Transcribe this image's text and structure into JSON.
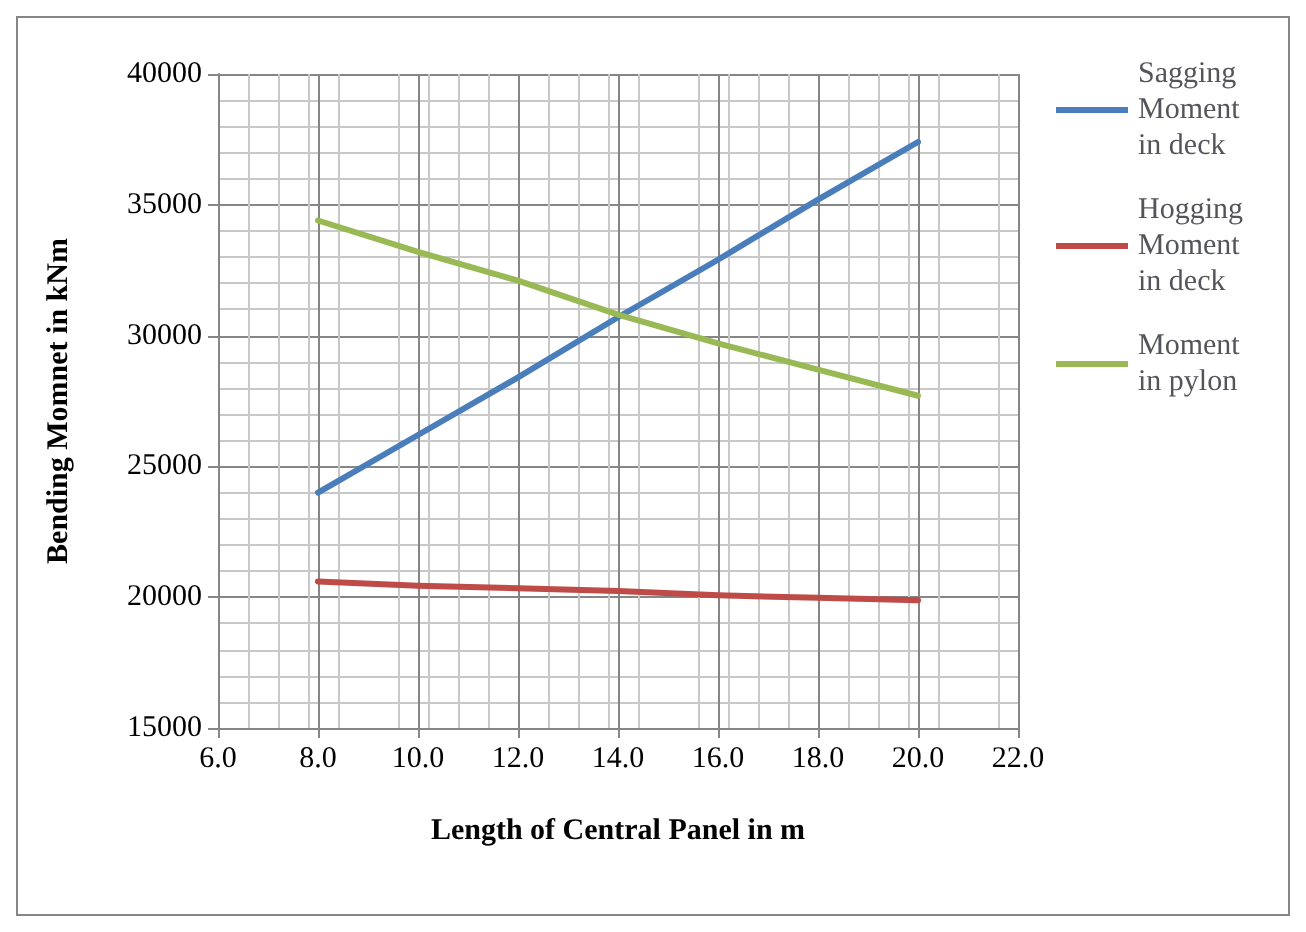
{
  "chart_data": {
    "type": "line",
    "xlabel": "Length of Central Panel in m",
    "ylabel": "Bending Momnet in kNm",
    "x": [
      8,
      10,
      12,
      14,
      16,
      18,
      20
    ],
    "series": [
      {
        "name": "Sagging Moment in deck",
        "color": "#4a7ebb",
        "values": [
          24000,
          26200,
          28400,
          30700,
          32900,
          35200,
          37400
        ]
      },
      {
        "name": "Hogging Moment in deck",
        "color": "#be4b48",
        "values": [
          20600,
          20440,
          20340,
          20240,
          20070,
          19980,
          19880
        ]
      },
      {
        "name": "Moment in pylon",
        "color": "#98b954",
        "values": [
          34400,
          33200,
          32100,
          30800,
          29700,
          28700,
          27700
        ]
      }
    ],
    "xlim": [
      6,
      22
    ],
    "xticks": [
      {
        "value": 6,
        "label": "6.0"
      },
      {
        "value": 8,
        "label": "8.0"
      },
      {
        "value": 10,
        "label": "10.0"
      },
      {
        "value": 12,
        "label": "12.0"
      },
      {
        "value": 14,
        "label": "14.0"
      },
      {
        "value": 16,
        "label": "16.0"
      },
      {
        "value": 18,
        "label": "18.0"
      },
      {
        "value": 20,
        "label": "20.0"
      },
      {
        "value": 22,
        "label": "22.0"
      }
    ],
    "ylim": [
      15000,
      40000
    ],
    "yticks": [
      15000,
      20000,
      25000,
      30000,
      35000,
      40000
    ],
    "grid": true,
    "legend": "right",
    "marker": "none",
    "line_style": "solid"
  }
}
